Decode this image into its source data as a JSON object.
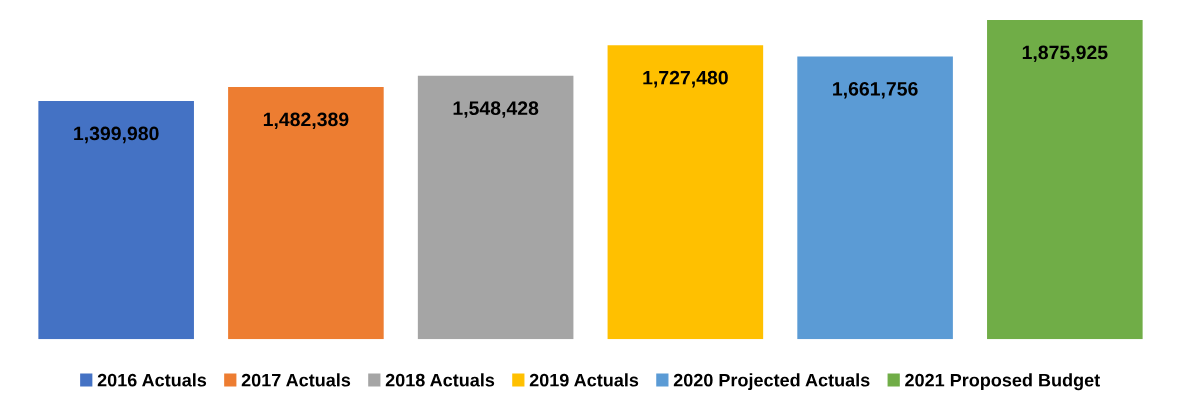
{
  "chart_data": {
    "type": "bar",
    "categories": [
      null,
      null,
      null,
      null,
      null,
      null
    ],
    "series": [
      {
        "name": "2016 Actuals",
        "color": "#4472c4",
        "values": [
          1399980,
          null,
          null,
          null,
          null,
          null
        ],
        "value_labels": [
          "1,399,980",
          null,
          null,
          null,
          null,
          null
        ]
      },
      {
        "name": "2017 Actuals",
        "color": "#ed7d31",
        "values": [
          null,
          1482389,
          null,
          null,
          null,
          null
        ],
        "value_labels": [
          null,
          "1,482,389",
          null,
          null,
          null,
          null
        ]
      },
      {
        "name": "2018 Actuals",
        "color": "#a5a5a5",
        "values": [
          null,
          null,
          1548428,
          null,
          null,
          null
        ],
        "value_labels": [
          null,
          null,
          "1,548,428",
          null,
          null,
          null
        ]
      },
      {
        "name": "2019 Actuals",
        "color": "#ffc000",
        "values": [
          null,
          null,
          null,
          1727480,
          null,
          null
        ],
        "value_labels": [
          null,
          null,
          null,
          "1,727,480",
          null,
          null
        ]
      },
      {
        "name": "2020 Projected Actuals",
        "color": "#5b9bd5",
        "values": [
          null,
          null,
          null,
          null,
          1661756,
          null
        ],
        "value_labels": [
          null,
          null,
          null,
          null,
          "1,661,756",
          null
        ]
      },
      {
        "name": "2021 Proposed Budget",
        "color": "#70ad47",
        "values": [
          null,
          null,
          null,
          null,
          null,
          1875925
        ],
        "value_labels": [
          null,
          null,
          null,
          null,
          null,
          "1,875,925"
        ]
      }
    ],
    "stacked": true,
    "tick_labels": false,
    "legend": "bottom"
  }
}
